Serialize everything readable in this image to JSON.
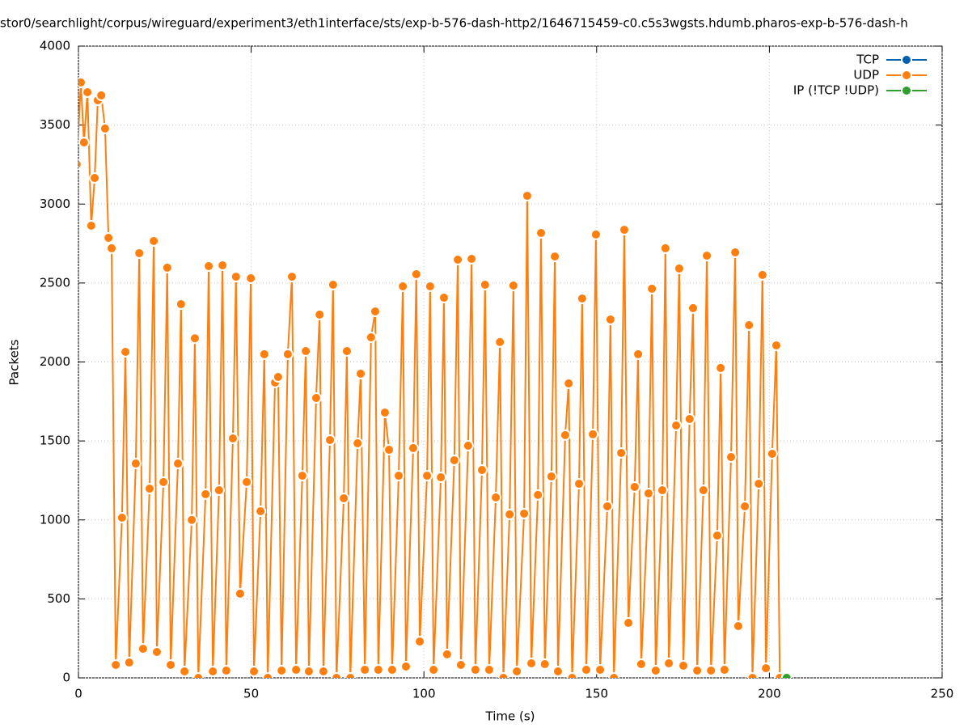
{
  "chart_data": {
    "type": "line",
    "title": "stor0/searchlight/corpus/wireguard/experiment3/eth1interface/sts/exp-b-576-dash-http2/1646715459-c0.c5s3wgsts.hdumb.pharos-exp-b-576-dash-h",
    "xlabel": "Time (s)",
    "ylabel": "Packets",
    "xlim": [
      0,
      250
    ],
    "xticks": [
      0,
      50,
      100,
      150,
      200,
      250
    ],
    "ylim": [
      0,
      4000
    ],
    "yticks": [
      0,
      500,
      1000,
      1500,
      2000,
      2500,
      3000,
      3500,
      4000
    ],
    "grid": true,
    "legend": "top-right",
    "series": [
      {
        "name": "TCP",
        "color": "#0060ad",
        "x": [],
        "values": []
      },
      {
        "name": "UDP",
        "color": "#ff7f0e",
        "x": [
          -0.5,
          0.7,
          1.6,
          2.6,
          3.7,
          4.7,
          5.6,
          6.6,
          7.7,
          8.7,
          9.6,
          10.8,
          12.6,
          13.6,
          14.7,
          16.6,
          17.6,
          18.7,
          20.6,
          21.8,
          22.7,
          24.6,
          25.7,
          26.7,
          28.8,
          29.7,
          30.7,
          32.8,
          33.7,
          34.7,
          36.8,
          37.7,
          38.9,
          40.7,
          41.7,
          42.8,
          44.7,
          45.6,
          46.8,
          48.7,
          49.9,
          50.8,
          52.7,
          53.8,
          54.8,
          56.9,
          57.8,
          58.8,
          60.6,
          61.8,
          63.0,
          64.8,
          65.8,
          66.7,
          68.8,
          69.8,
          70.9,
          72.8,
          73.7,
          74.7,
          76.8,
          77.7,
          78.7,
          80.8,
          81.7,
          82.9,
          84.7,
          85.9,
          86.8,
          88.7,
          89.9,
          90.8,
          92.7,
          93.9,
          94.8,
          96.9,
          97.8,
          98.8,
          100.9,
          101.8,
          102.8,
          104.9,
          105.8,
          106.7,
          108.8,
          109.8,
          110.7,
          112.8,
          113.8,
          114.9,
          116.8,
          117.7,
          118.9,
          120.8,
          122.0,
          123.0,
          124.8,
          125.9,
          126.9,
          129.0,
          129.9,
          131.1,
          133.0,
          133.9,
          135.0,
          136.9,
          137.9,
          138.8,
          140.9,
          141.9,
          142.9,
          144.9,
          145.8,
          147.0,
          148.9,
          149.8,
          151.0,
          153.1,
          154.0,
          155.0,
          157.1,
          158.0,
          159.2,
          161.0,
          162.0,
          162.9,
          165.0,
          166.0,
          167.1,
          169.0,
          169.9,
          170.9,
          173.0,
          173.9,
          175.1,
          176.9,
          177.9,
          179.1,
          180.9,
          181.9,
          183.1,
          184.9,
          185.9,
          187.0,
          188.9,
          190.1,
          191.0,
          192.9,
          194.1,
          195.1,
          196.9,
          198.0,
          199.0,
          200.8,
          202.0,
          203.0
        ],
        "values": [
          3252,
          3770,
          3390,
          3708,
          2863,
          3165,
          3657,
          3688,
          3478,
          2786,
          2720,
          82,
          1014,
          2064,
          97,
          1357,
          2689,
          184,
          1198,
          2766,
          164,
          1240,
          2597,
          82,
          1357,
          2366,
          41,
          1000,
          2150,
          0,
          1163,
          2607,
          41,
          1188,
          2612,
          46,
          1516,
          2540,
          533,
          1240,
          2530,
          41,
          1055,
          2049,
          0,
          1870,
          1905,
          46,
          2049,
          2540,
          51,
          1280,
          2069,
          41,
          1772,
          2300,
          41,
          1506,
          2489,
          0,
          1137,
          2069,
          0,
          1485,
          1926,
          51,
          2156,
          2320,
          51,
          1680,
          1444,
          51,
          1280,
          2479,
          72,
          1455,
          2556,
          230,
          1280,
          2479,
          51,
          1270,
          2407,
          149,
          1378,
          2648,
          82,
          1470,
          2653,
          51,
          1316,
          2489,
          51,
          1142,
          2126,
          0,
          1035,
          2484,
          41,
          1040,
          3052,
          92,
          1158,
          2817,
          87,
          1275,
          2668,
          41,
          1537,
          1864,
          0,
          1229,
          2402,
          51,
          1542,
          2807,
          51,
          1086,
          2269,
          0,
          1424,
          2837,
          348,
          1209,
          2049,
          87,
          1168,
          2464,
          46,
          1188,
          2720,
          92,
          1598,
          2592,
          77,
          1639,
          2341,
          46,
          1188,
          2673,
          46,
          901,
          1962,
          51,
          1398,
          2694,
          328,
          1086,
          2233,
          0,
          1229,
          2551,
          61,
          1419,
          2105,
          0
        ]
      },
      {
        "name": "IP (!TCP  !UDP)",
        "color": "#2ca02c",
        "x": [
          205
        ],
        "values": [
          0
        ]
      }
    ]
  }
}
